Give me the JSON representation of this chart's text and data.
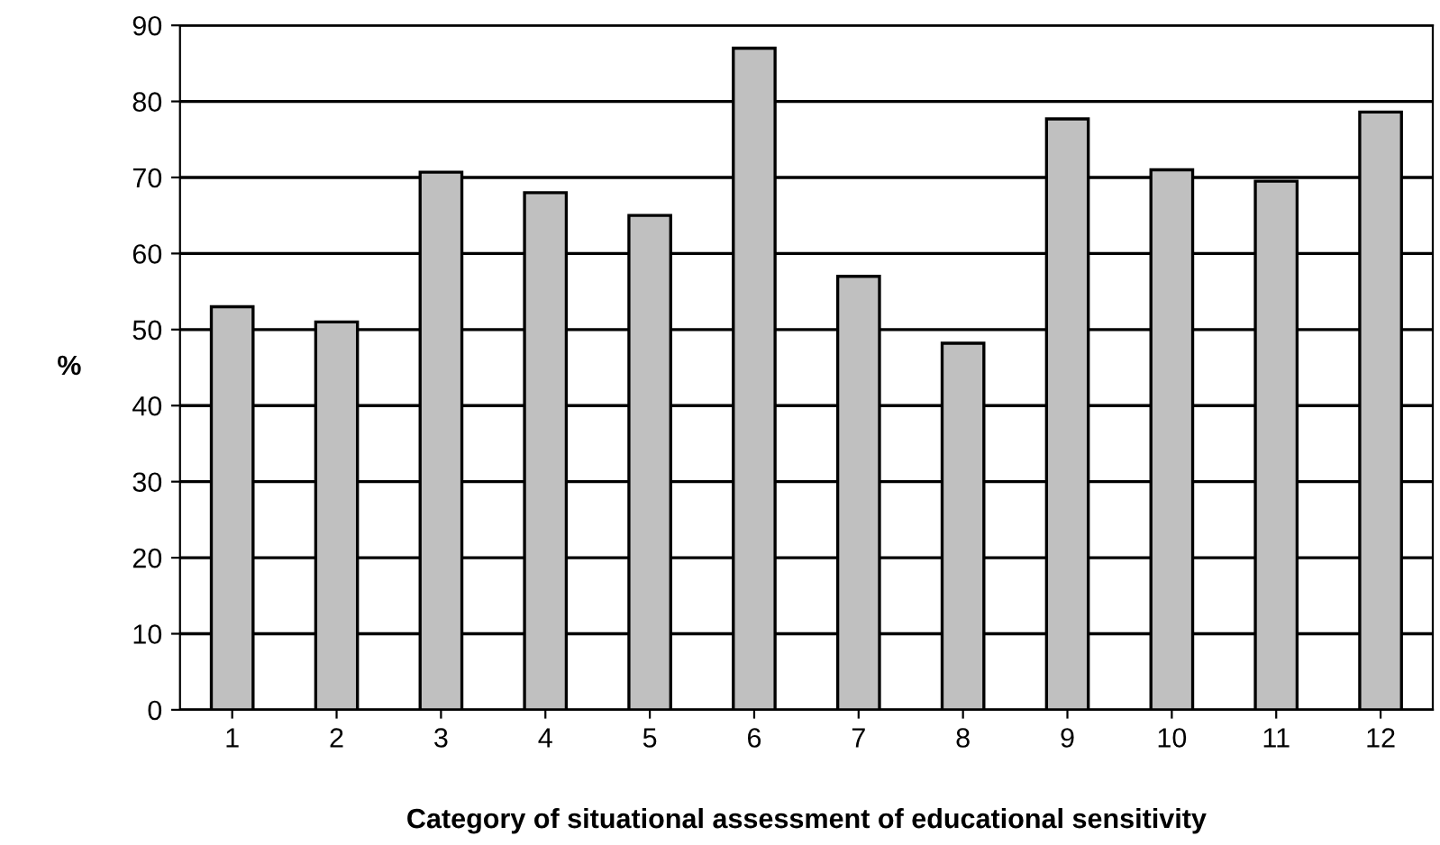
{
  "chart_data": {
    "type": "bar",
    "xlabel": "Category of situational assessment of educational sensitivity",
    "ylabel": "%",
    "categories": [
      "1",
      "2",
      "3",
      "4",
      "5",
      "6",
      "7",
      "8",
      "9",
      "10",
      "11",
      "12"
    ],
    "values": [
      53,
      51,
      70.7,
      68,
      65,
      87,
      57,
      48.2,
      77.7,
      71,
      69.5,
      78.6
    ],
    "color": "#c0c0c0",
    "ylim": [
      0,
      90
    ],
    "yticks": [
      0,
      10,
      20,
      30,
      40,
      50,
      60,
      70,
      80,
      90
    ],
    "grid": "y",
    "legend": false
  }
}
